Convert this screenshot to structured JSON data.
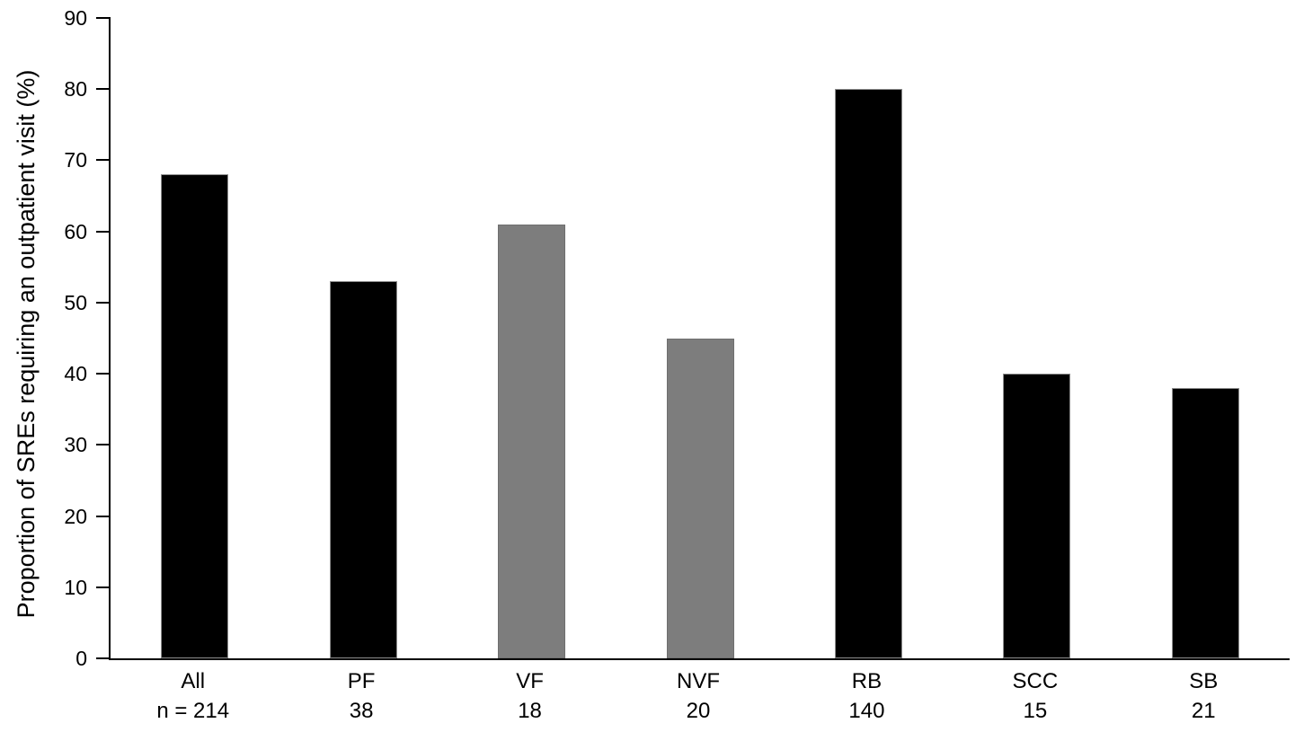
{
  "chart_data": {
    "type": "bar",
    "title": "",
    "xlabel": "",
    "ylabel": "Proportion of SREs requiring an outpatient visit (%)",
    "ylim": [
      0,
      90
    ],
    "yticks": [
      0,
      10,
      20,
      30,
      40,
      50,
      60,
      70,
      80,
      90
    ],
    "grid": false,
    "legend": "none",
    "categories": [
      "All",
      "PF",
      "VF",
      "NVF",
      "RB",
      "SCC",
      "SB"
    ],
    "n_labels": [
      "n = 214",
      "38",
      "18",
      "20",
      "140",
      "15",
      "21"
    ],
    "values": [
      68,
      53,
      61,
      45,
      80,
      40,
      38
    ],
    "bar_colors": [
      "#000000",
      "#000000",
      "#7d7d7d",
      "#7d7d7d",
      "#000000",
      "#000000",
      "#000000"
    ],
    "axis_color": "#000000",
    "background_color": "#ffffff"
  }
}
